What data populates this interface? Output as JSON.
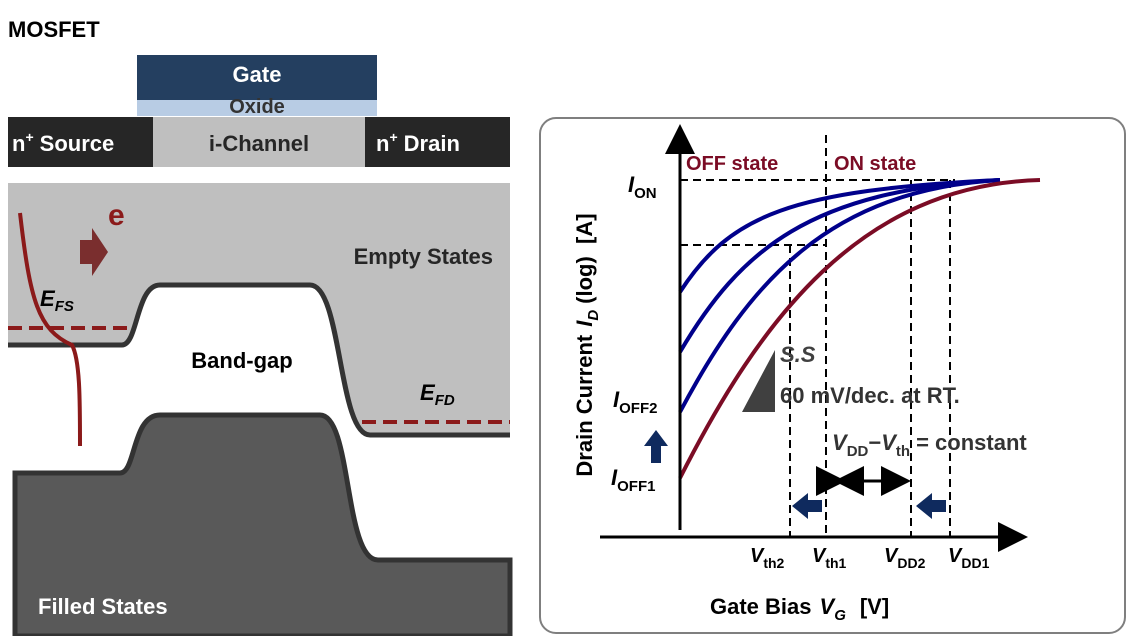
{
  "title": "MOSFET",
  "device": {
    "gate": "Gate",
    "oxide": "Oxide",
    "source": {
      "main": "n",
      "sup": "+",
      "rest": "Source"
    },
    "channel": "i-Channel",
    "drain": {
      "main": "n",
      "sup": "+",
      "rest": "Drain"
    }
  },
  "band": {
    "electron": "e",
    "empty": "Empty States",
    "gap": "Band-gap",
    "filled": "Filled States",
    "efs": {
      "main": "E",
      "sub": "FS"
    },
    "efd": {
      "main": "E",
      "sub": "FD"
    }
  },
  "plot": {
    "off_state": "OFF state",
    "on_state": "ON state",
    "ion": {
      "main": "I",
      "sub": "ON"
    },
    "ioff2": {
      "main": "I",
      "sub": "OFF2"
    },
    "ioff1": {
      "main": "I",
      "sub": "OFF1"
    },
    "ss": "S.S",
    "ss_value": "60 mV/dec. at RT.",
    "constant": {
      "a": "V",
      "a_sub": "DD",
      "dash": "−",
      "b": "V",
      "b_sub": "th",
      "rest": "= constant"
    },
    "vth2": {
      "main": "V",
      "sub": "th2"
    },
    "vth1": {
      "main": "V",
      "sub": "th1"
    },
    "vdd2": {
      "main": "V",
      "sub": "DD2"
    },
    "vdd1": {
      "main": "V",
      "sub": "DD1"
    },
    "x_axis": {
      "text": "Gate Bias",
      "var": "V",
      "sub": "G",
      "unit": "[V]"
    },
    "y_axis": {
      "text": "Drain Current",
      "var": "I",
      "sub": "D",
      "unit": "(log)  [A]"
    }
  }
}
